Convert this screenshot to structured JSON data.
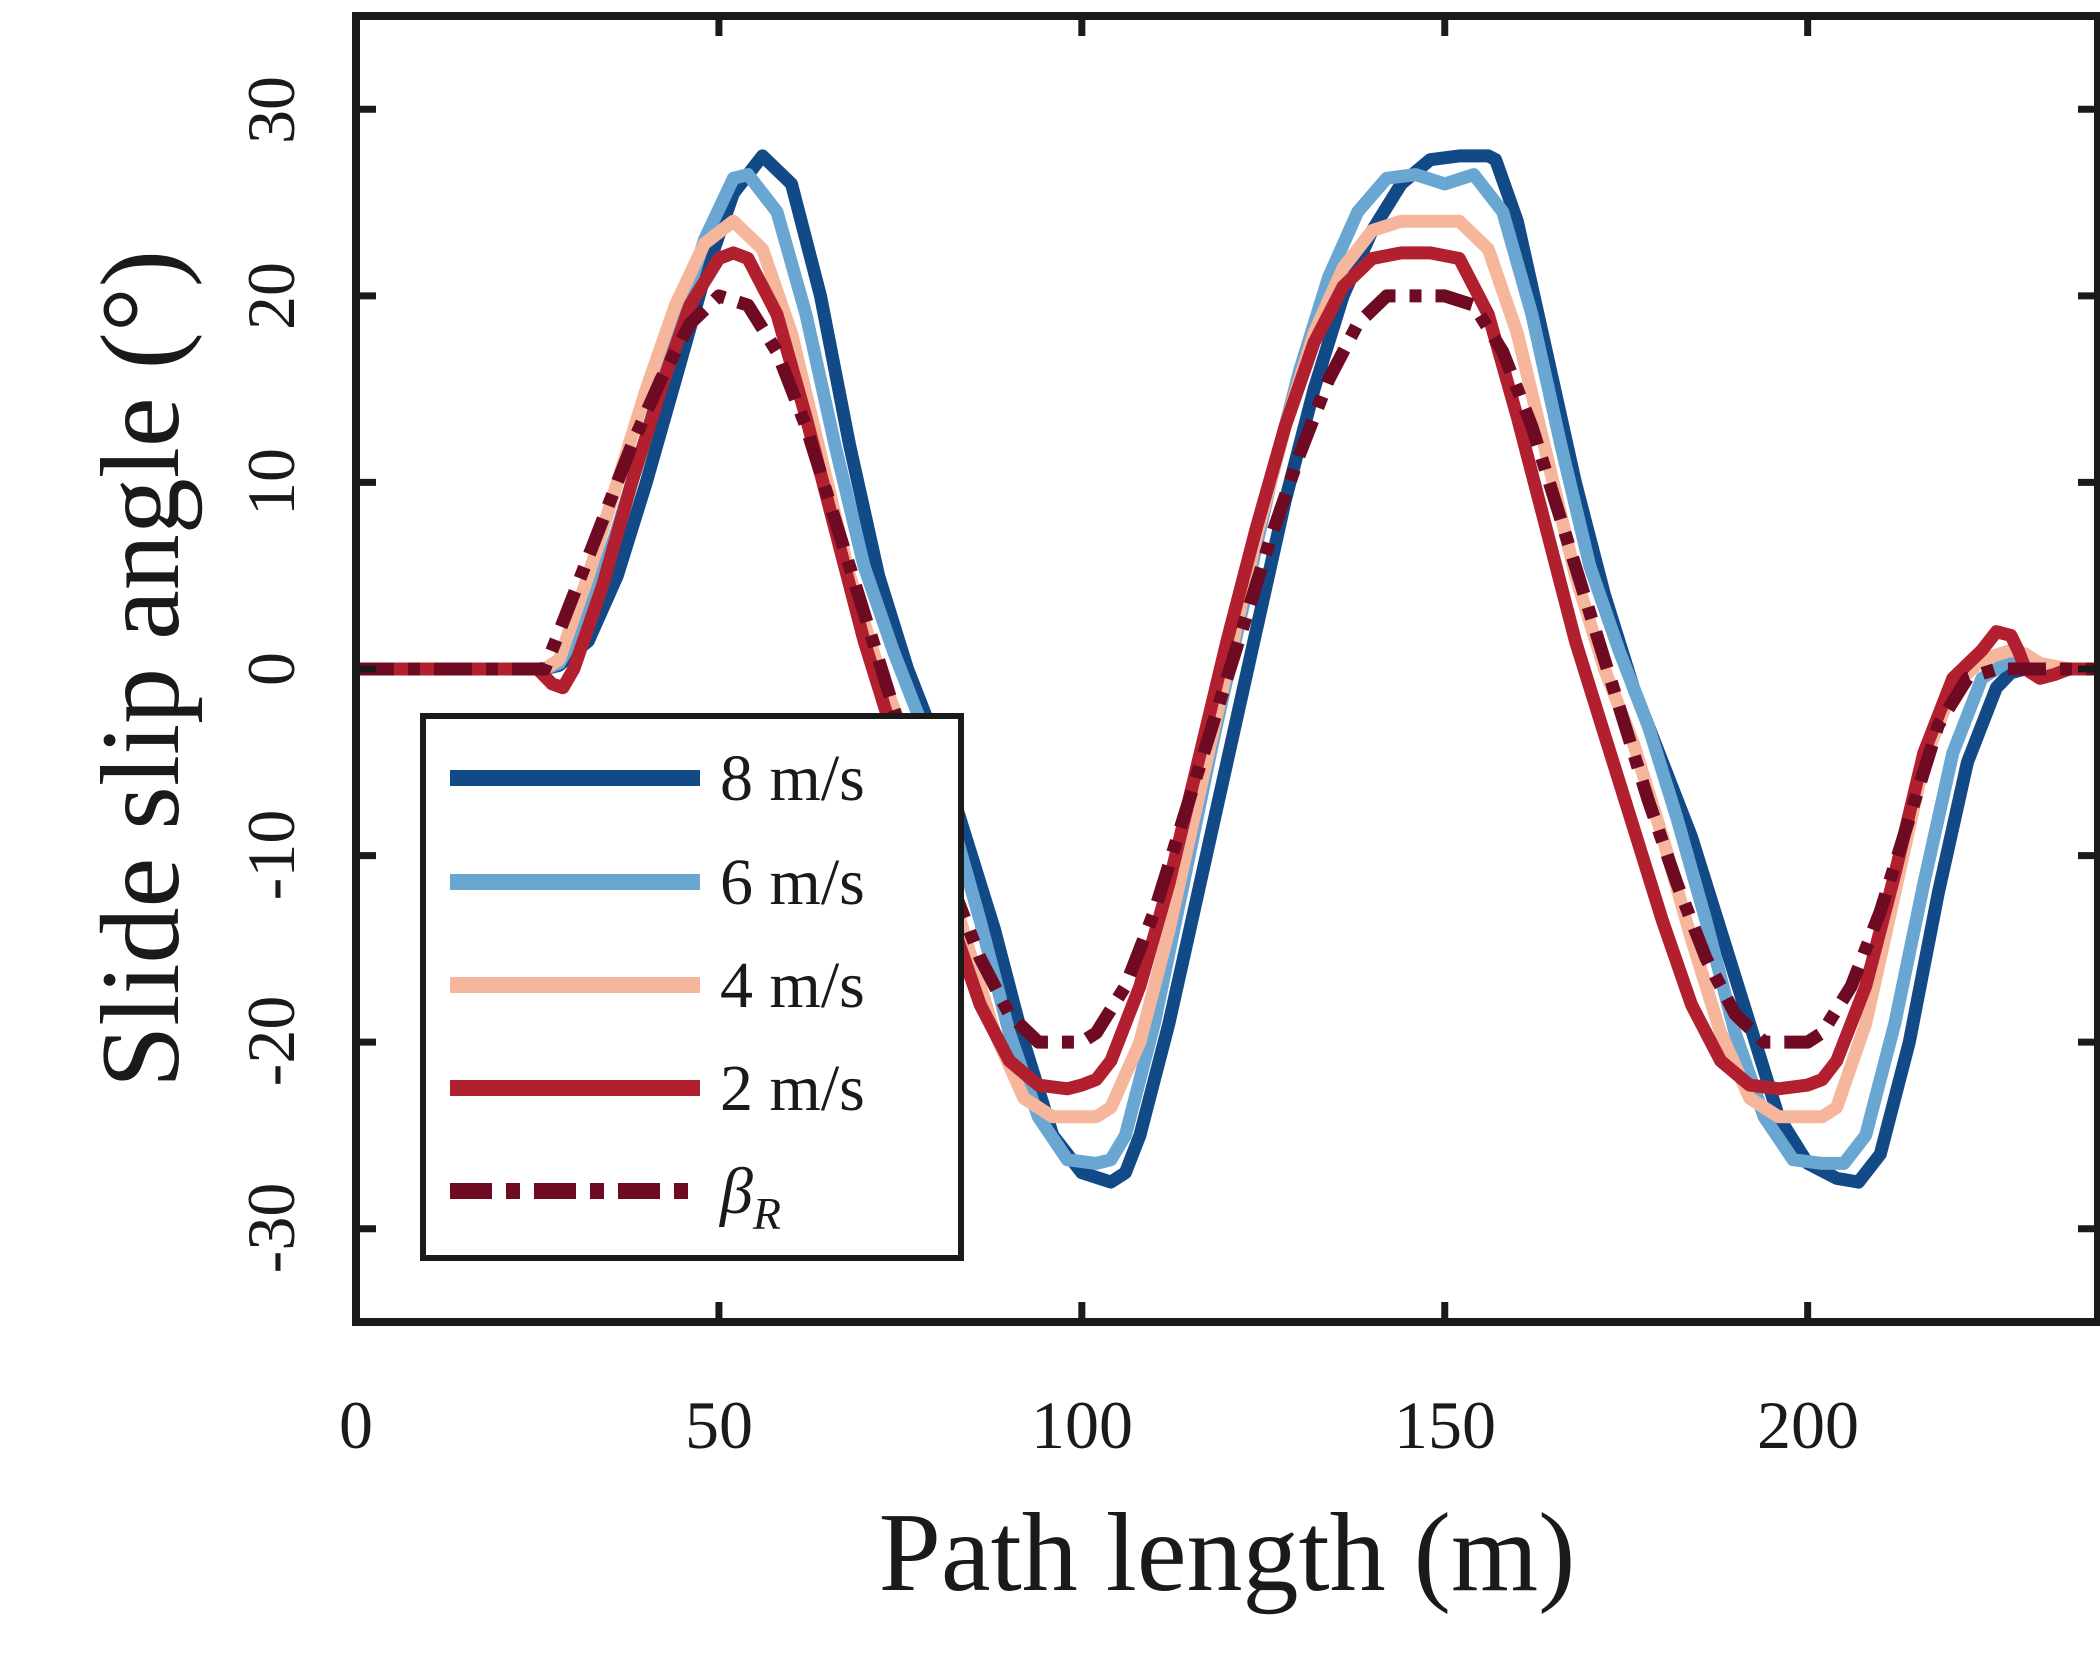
{
  "chart_data": {
    "type": "line",
    "title": "",
    "xlabel": "Path length (m)",
    "ylabel": "Slide slip angle (°)",
    "xlim": [
      0,
      240
    ],
    "ylim": [
      -35,
      35
    ],
    "xticks": [
      0,
      50,
      100,
      150,
      200
    ],
    "yticks": [
      -30,
      -20,
      -10,
      0,
      10,
      20,
      30
    ],
    "grid": false,
    "legend_position": "lower-left",
    "series": [
      {
        "name": "8 m/s",
        "color": "#114a87",
        "dash": "solid",
        "x": [
          0,
          26,
          28,
          32,
          36,
          40,
          44,
          48,
          52,
          56,
          60,
          64,
          68,
          72,
          76,
          80,
          84,
          88,
          92,
          96,
          100,
          104,
          106,
          108,
          112,
          116,
          120,
          124,
          128,
          132,
          136,
          140,
          144,
          148,
          152,
          156,
          157,
          160,
          164,
          168,
          172,
          176,
          180,
          184,
          188,
          192,
          196,
          200,
          204,
          207,
          210,
          214,
          218,
          222,
          226,
          228,
          230,
          232,
          236,
          240
        ],
        "y": [
          0,
          0,
          0.2,
          1.5,
          5,
          10,
          15.5,
          21,
          25.5,
          27.5,
          26,
          20,
          12,
          5,
          0,
          -4,
          -9,
          -14,
          -20,
          -25,
          -27,
          -27.5,
          -27,
          -25,
          -19,
          -12,
          -5,
          2,
          9,
          15,
          20,
          23.5,
          26,
          27.3,
          27.5,
          27.5,
          27.3,
          24,
          17,
          10,
          4,
          -1,
          -5,
          -9,
          -14,
          -19,
          -24,
          -26.5,
          -27.3,
          -27.5,
          -26,
          -20,
          -12,
          -5,
          -1,
          -0.2,
          0,
          0.2,
          0,
          0
        ]
      },
      {
        "name": "6 m/s",
        "color": "#6aa6d2",
        "dash": "solid",
        "x": [
          0,
          26,
          28,
          32,
          36,
          40,
          44,
          48,
          52,
          54,
          58,
          62,
          66,
          70,
          74,
          78,
          82,
          86,
          90,
          94,
          98,
          102,
          104,
          106,
          110,
          114,
          118,
          122,
          126,
          130,
          134,
          138,
          142,
          146,
          150,
          154,
          158,
          162,
          166,
          170,
          174,
          178,
          182,
          186,
          190,
          194,
          198,
          202,
          205,
          208,
          212,
          216,
          220,
          224,
          228,
          230,
          232,
          236,
          240
        ],
        "y": [
          0,
          0,
          0.3,
          3,
          7.5,
          12.5,
          18,
          23,
          26.3,
          26.5,
          24.5,
          19,
          12,
          5.5,
          1,
          -3,
          -8,
          -13.5,
          -19.5,
          -24,
          -26.3,
          -26.5,
          -26.3,
          -25,
          -19,
          -11.5,
          -4,
          3,
          10,
          16,
          21,
          24.5,
          26.3,
          26.5,
          26,
          26.5,
          24.5,
          19,
          12,
          5.5,
          1,
          -3,
          -8,
          -13.5,
          -19.5,
          -24,
          -26.3,
          -26.5,
          -26.5,
          -25,
          -19,
          -11.5,
          -4.5,
          -0.5,
          0.5,
          0.3,
          0,
          0,
          0
        ]
      },
      {
        "name": "4 m/s",
        "color": "#f6b69b",
        "dash": "solid",
        "x": [
          0,
          26,
          28,
          32,
          36,
          40,
          44,
          48,
          52,
          56,
          60,
          64,
          68,
          72,
          76,
          80,
          84,
          88,
          92,
          96,
          100,
          102,
          104,
          108,
          112,
          116,
          120,
          124,
          128,
          132,
          136,
          140,
          144,
          148,
          152,
          156,
          160,
          164,
          168,
          172,
          176,
          180,
          184,
          188,
          192,
          196,
          200,
          202,
          204,
          208,
          212,
          216,
          220,
          224,
          228,
          230,
          232,
          236,
          240
        ],
        "y": [
          0,
          0,
          0.5,
          5,
          10,
          15,
          19.5,
          22.8,
          24,
          22.5,
          18,
          11.5,
          5,
          0,
          -4,
          -9,
          -14.5,
          -19.5,
          -23,
          -24,
          -24,
          -24,
          -23.5,
          -20,
          -14,
          -7,
          0,
          7,
          13,
          18,
          21.5,
          23.5,
          24,
          24,
          24,
          22.5,
          18,
          11.5,
          5,
          0,
          -4,
          -9,
          -14.5,
          -19.5,
          -23,
          -24,
          -24,
          -24,
          -23.5,
          -19,
          -12,
          -5,
          -1,
          0.5,
          1,
          0.8,
          0.3,
          0,
          0
        ]
      },
      {
        "name": "2 m/s",
        "color": "#b2202f",
        "dash": "solid",
        "x": [
          0,
          25,
          27,
          28.5,
          30,
          34,
          38,
          42,
          46,
          50,
          52,
          54,
          58,
          62,
          66,
          70,
          74,
          78,
          82,
          86,
          90,
          94,
          98,
          100,
          102,
          104,
          108,
          112,
          116,
          120,
          124,
          128,
          132,
          136,
          140,
          144,
          148,
          152,
          156,
          160,
          164,
          168,
          172,
          176,
          180,
          184,
          188,
          192,
          196,
          200,
          202,
          204,
          208,
          212,
          216,
          220,
          224,
          226,
          228,
          229,
          230,
          232,
          234,
          236,
          240
        ],
        "y": [
          0,
          0,
          -0.8,
          -1,
          0,
          4.5,
          10,
          15,
          19.5,
          22,
          22.3,
          22,
          19,
          13.5,
          7.5,
          1.5,
          -3.5,
          -8.5,
          -13.5,
          -18,
          -21,
          -22.3,
          -22.5,
          -22.3,
          -22,
          -21,
          -17,
          -11.5,
          -5,
          1.5,
          7.5,
          13,
          17.5,
          20.5,
          22,
          22.3,
          22.3,
          22,
          19,
          13.5,
          7.5,
          1.5,
          -3.5,
          -8.5,
          -13.5,
          -18,
          -21,
          -22.3,
          -22.5,
          -22.3,
          -22,
          -21,
          -17,
          -11,
          -4.5,
          -0.5,
          1,
          2,
          1.8,
          1,
          0,
          -0.5,
          -0.3,
          0,
          0
        ]
      },
      {
        "name": "β_R",
        "color": "#6e0a22",
        "dash": "dashdot",
        "x": [
          0,
          26,
          30,
          34,
          38,
          42,
          46,
          50,
          54,
          58,
          62,
          66,
          70,
          74,
          78,
          82,
          86,
          90,
          94,
          98,
          100,
          102,
          106,
          110,
          114,
          118,
          122,
          126,
          130,
          134,
          138,
          142,
          146,
          150,
          154,
          158,
          162,
          166,
          170,
          174,
          178,
          182,
          186,
          190,
          194,
          198,
          200,
          202,
          206,
          210,
          214,
          218,
          222,
          226,
          228,
          240
        ],
        "y": [
          0,
          0,
          4,
          8,
          12,
          15.5,
          18.5,
          20,
          19.5,
          17,
          13,
          8,
          3,
          -2,
          -7,
          -11.5,
          -15.5,
          -18.5,
          -20,
          -20,
          -20,
          -19.5,
          -17,
          -13,
          -8,
          -3,
          2,
          7,
          11.5,
          15.5,
          18.5,
          20,
          20,
          20,
          19.5,
          17,
          13,
          8,
          3,
          -2,
          -7,
          -11.5,
          -15.5,
          -18.5,
          -20,
          -20,
          -20,
          -19.5,
          -17,
          -13,
          -8,
          -3,
          -0.5,
          0,
          0,
          0
        ]
      }
    ],
    "legend": {
      "entries": [
        "8 m/s",
        "6 m/s",
        "4 m/s",
        "2 m/s",
        "β"
      ],
      "beta_subscript": "R"
    }
  }
}
